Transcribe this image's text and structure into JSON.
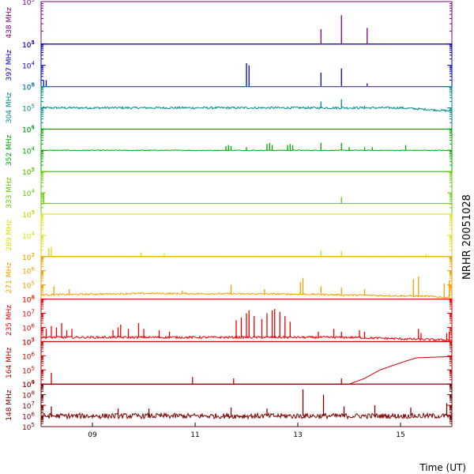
{
  "chart_data": {
    "type": "line",
    "side_label": "NRHR 20051028",
    "xlabel": "Time (UT)",
    "xlim": [
      8.0,
      16.0
    ],
    "x_ticks": [
      {
        "x": 9,
        "label": "09"
      },
      {
        "x": 11,
        "label": "11"
      },
      {
        "x": 13,
        "label": "13"
      },
      {
        "x": 15,
        "label": "15"
      }
    ],
    "panels": [
      {
        "label": "438 MHz",
        "color": "#800080",
        "ylim_exp": [
          4,
          5
        ],
        "ticks": [
          {
            "e": 5,
            "m": "10",
            "s": "5"
          },
          {
            "e": 4,
            "m": "10",
            "s": "4"
          }
        ],
        "baseline": 4.0,
        "noise": 0.0,
        "drift": [],
        "spikes": [
          [
            13.45,
            4.35
          ],
          [
            13.85,
            4.68
          ],
          [
            14.35,
            4.38
          ]
        ]
      },
      {
        "label": "397 MHz",
        "color": "#0000cc",
        "ylim_exp": [
          3,
          5
        ],
        "ticks": [
          {
            "e": 5,
            "m": "10",
            "s": "5"
          },
          {
            "e": 4,
            "m": "10",
            "s": "4"
          },
          {
            "e": 3,
            "m": "10",
            "s": "3"
          }
        ],
        "baseline": 3.0,
        "noise": 0.0,
        "drift": [],
        "spikes": [
          [
            8.05,
            3.3
          ],
          [
            8.1,
            3.3
          ],
          [
            12.0,
            4.1
          ],
          [
            12.05,
            4.0
          ],
          [
            13.45,
            3.65
          ],
          [
            13.85,
            3.85
          ],
          [
            14.35,
            3.15
          ]
        ]
      },
      {
        "label": "304 MHz",
        "color": "#008a8a",
        "ylim_exp": [
          4,
          6
        ],
        "ticks": [
          {
            "e": 6,
            "m": "10",
            "s": "6"
          },
          {
            "e": 5,
            "m": "10",
            "s": "5"
          },
          {
            "e": 4,
            "m": "10",
            "s": "4"
          }
        ],
        "baseline": 5.0,
        "noise": 0.05,
        "drift": [
          [
            15.0,
            5.0
          ],
          [
            16.0,
            4.85
          ]
        ],
        "spikes": [
          [
            13.45,
            5.3
          ],
          [
            13.85,
            5.4
          ],
          [
            14.3,
            5.1
          ]
        ]
      },
      {
        "label": "352 MHz",
        "color": "#00aa00",
        "ylim_exp": [
          3,
          5
        ],
        "ticks": [
          {
            "e": 5,
            "m": "10",
            "s": "5"
          },
          {
            "e": 4,
            "m": "10",
            "s": "4"
          },
          {
            "e": 3,
            "m": "10",
            "s": "3"
          }
        ],
        "baseline": 4.0,
        "noise": 0.02,
        "drift": [],
        "spikes": [
          [
            11.6,
            4.2
          ],
          [
            11.65,
            4.25
          ],
          [
            11.7,
            4.2
          ],
          [
            12.0,
            4.15
          ],
          [
            12.4,
            4.3
          ],
          [
            12.45,
            4.35
          ],
          [
            12.5,
            4.25
          ],
          [
            12.8,
            4.25
          ],
          [
            12.85,
            4.3
          ],
          [
            12.9,
            4.25
          ],
          [
            13.45,
            4.35
          ],
          [
            13.85,
            4.35
          ],
          [
            14.0,
            4.15
          ],
          [
            14.3,
            4.15
          ],
          [
            14.45,
            4.15
          ],
          [
            15.1,
            4.25
          ]
        ]
      },
      {
        "label": "333 MHz",
        "color": "#66cc00",
        "ylim_exp": [
          3,
          5
        ],
        "ticks": [
          {
            "e": 5,
            "m": "10",
            "s": "5"
          },
          {
            "e": 4,
            "m": "10",
            "s": "4"
          },
          {
            "e": 3,
            "m": "10",
            "s": "3"
          }
        ],
        "baseline": 3.5,
        "noise": 0.0,
        "drift": [],
        "spikes": [
          [
            8.05,
            4.0
          ],
          [
            13.85,
            3.8
          ]
        ]
      },
      {
        "label": "289 MHz",
        "color": "#dddd00",
        "ylim_exp": [
          3,
          5
        ],
        "ticks": [
          {
            "e": 5,
            "m": "10",
            "s": "5"
          },
          {
            "e": 4,
            "m": "10",
            "s": "4"
          },
          {
            "e": 3,
            "m": "10",
            "s": "3"
          }
        ],
        "baseline": 3.0,
        "noise": 0.01,
        "drift": [],
        "spikes": [
          [
            8.15,
            3.4
          ],
          [
            8.2,
            3.45
          ],
          [
            9.95,
            3.2
          ],
          [
            10.4,
            3.15
          ],
          [
            13.45,
            3.3
          ],
          [
            13.85,
            3.25
          ],
          [
            15.5,
            3.1
          ]
        ]
      },
      {
        "label": "271 MHz",
        "color": "#f0a000",
        "ylim_exp": [
          4,
          7
        ],
        "ticks": [
          {
            "e": 7,
            "m": "10",
            "s": "7"
          },
          {
            "e": 6,
            "m": "10",
            "s": "6"
          },
          {
            "e": 5,
            "m": "10",
            "s": "5"
          },
          {
            "e": 4,
            "m": "10",
            "s": "4"
          }
        ],
        "baseline": 4.3,
        "noise": 0.06,
        "drift": [
          [
            8.0,
            4.3
          ],
          [
            10.0,
            4.4
          ],
          [
            13.0,
            4.35
          ],
          [
            15.5,
            4.2
          ],
          [
            16.0,
            4.1
          ]
        ],
        "spikes": [
          [
            8.25,
            4.9
          ],
          [
            8.55,
            4.7
          ],
          [
            10.75,
            4.6
          ],
          [
            11.7,
            5.0
          ],
          [
            12.35,
            4.7
          ],
          [
            13.05,
            5.2
          ],
          [
            13.1,
            5.5
          ],
          [
            13.45,
            4.9
          ],
          [
            13.85,
            4.8
          ],
          [
            14.3,
            4.7
          ],
          [
            15.25,
            5.4
          ],
          [
            15.35,
            5.6
          ],
          [
            15.85,
            5.1
          ],
          [
            15.95,
            5.3
          ]
        ]
      },
      {
        "label": "235 MHz",
        "color": "#ee0000",
        "ylim_exp": [
          5,
          8
        ],
        "ticks": [
          {
            "e": 8,
            "m": "10",
            "s": "8"
          },
          {
            "e": 7,
            "m": "10",
            "s": "7"
          },
          {
            "e": 6,
            "m": "10",
            "s": "6"
          },
          {
            "e": 5,
            "m": "10",
            "s": "5"
          }
        ],
        "baseline": 5.3,
        "noise": 0.08,
        "drift": [
          [
            14.0,
            5.3
          ],
          [
            16.0,
            5.1
          ]
        ],
        "spikes": [
          [
            8.1,
            5.9
          ],
          [
            8.2,
            6.1
          ],
          [
            8.3,
            6.0
          ],
          [
            8.4,
            6.3
          ],
          [
            8.5,
            5.8
          ],
          [
            8.6,
            5.9
          ],
          [
            9.4,
            5.8
          ],
          [
            9.5,
            6.0
          ],
          [
            9.55,
            6.2
          ],
          [
            9.7,
            5.9
          ],
          [
            9.9,
            6.3
          ],
          [
            10.0,
            5.9
          ],
          [
            10.3,
            5.8
          ],
          [
            10.5,
            5.7
          ],
          [
            11.8,
            6.5
          ],
          [
            11.9,
            6.7
          ],
          [
            12.0,
            7.0
          ],
          [
            12.05,
            7.2
          ],
          [
            12.15,
            6.8
          ],
          [
            12.3,
            6.6
          ],
          [
            12.4,
            7.0
          ],
          [
            12.5,
            7.2
          ],
          [
            12.55,
            7.3
          ],
          [
            12.65,
            7.1
          ],
          [
            12.75,
            6.8
          ],
          [
            12.85,
            6.4
          ],
          [
            13.4,
            5.7
          ],
          [
            13.7,
            5.9
          ],
          [
            13.85,
            5.7
          ],
          [
            14.2,
            5.8
          ],
          [
            14.3,
            5.7
          ],
          [
            15.35,
            5.9
          ],
          [
            15.4,
            5.6
          ],
          [
            15.9,
            5.6
          ],
          [
            15.95,
            5.7
          ]
        ]
      },
      {
        "label": "164 MHz",
        "color": "#cc0000",
        "ylim_exp": [
          4,
          7
        ],
        "ticks": [
          {
            "e": 7,
            "m": "10",
            "s": "7"
          },
          {
            "e": 6,
            "m": "10",
            "s": "6"
          },
          {
            "e": 5,
            "m": "10",
            "s": "5"
          },
          {
            "e": 4,
            "m": "10",
            "s": "4"
          }
        ],
        "baseline": 4.0,
        "noise": 0.0,
        "drift": [
          [
            14.0,
            4.0
          ],
          [
            14.3,
            4.4
          ],
          [
            14.6,
            5.0
          ],
          [
            15.0,
            5.5
          ],
          [
            15.3,
            5.85
          ],
          [
            16.0,
            5.95
          ]
        ],
        "spikes": [
          [
            8.2,
            4.8
          ],
          [
            10.95,
            4.5
          ],
          [
            11.75,
            4.4
          ],
          [
            13.85,
            4.4
          ]
        ]
      },
      {
        "label": "148 MHz",
        "color": "#800000",
        "ylim_exp": [
          5,
          9
        ],
        "ticks": [
          {
            "e": 9,
            "m": "10",
            "s": "9"
          },
          {
            "e": 8,
            "m": "10",
            "s": "8"
          },
          {
            "e": 7,
            "m": "10",
            "s": "7"
          },
          {
            "e": 6,
            "m": "10",
            "s": "6"
          },
          {
            "e": 5,
            "m": "10",
            "s": "5"
          }
        ],
        "baseline": 6.0,
        "noise": 0.25,
        "drift": [],
        "spikes": [
          [
            8.2,
            6.9
          ],
          [
            9.5,
            6.7
          ],
          [
            10.1,
            6.7
          ],
          [
            11.7,
            6.8
          ],
          [
            12.4,
            6.7
          ],
          [
            13.1,
            8.5
          ],
          [
            13.5,
            8.0
          ],
          [
            13.9,
            6.9
          ],
          [
            14.5,
            7.0
          ],
          [
            15.2,
            6.8
          ],
          [
            15.9,
            7.2
          ]
        ]
      }
    ]
  }
}
